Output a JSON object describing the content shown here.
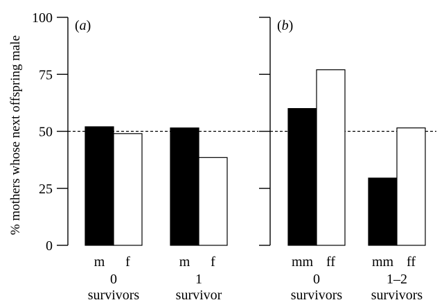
{
  "chart_data": {
    "type": "bar",
    "ylabel": "% mothers whose next offspring male",
    "ylim": [
      0,
      100
    ],
    "yticks": [
      0,
      25,
      50,
      75,
      100
    ],
    "reference_line": 50,
    "panels": [
      {
        "label": "a",
        "groups": [
          {
            "category": [
              "0",
              "survivors"
            ],
            "bars": [
              {
                "label": "m",
                "value": 52,
                "fill": "filled"
              },
              {
                "label": "f",
                "value": 49,
                "fill": "open"
              }
            ]
          },
          {
            "category": [
              "1",
              "survivor"
            ],
            "bars": [
              {
                "label": "m",
                "value": 51.5,
                "fill": "filled"
              },
              {
                "label": "f",
                "value": 38.5,
                "fill": "open"
              }
            ]
          }
        ]
      },
      {
        "label": "b",
        "groups": [
          {
            "category": [
              "0",
              "survivors"
            ],
            "bars": [
              {
                "label": "mm",
                "value": 60,
                "fill": "filled"
              },
              {
                "label": "ff",
                "value": 77,
                "fill": "open"
              }
            ]
          },
          {
            "category": [
              "1–2",
              "survivors"
            ],
            "bars": [
              {
                "label": "mm",
                "value": 29.5,
                "fill": "filled"
              },
              {
                "label": "ff",
                "value": 51.5,
                "fill": "open"
              }
            ]
          }
        ]
      }
    ],
    "colors": {
      "filled": "#000000",
      "open": "#ffffff",
      "axis": "#000000"
    }
  }
}
